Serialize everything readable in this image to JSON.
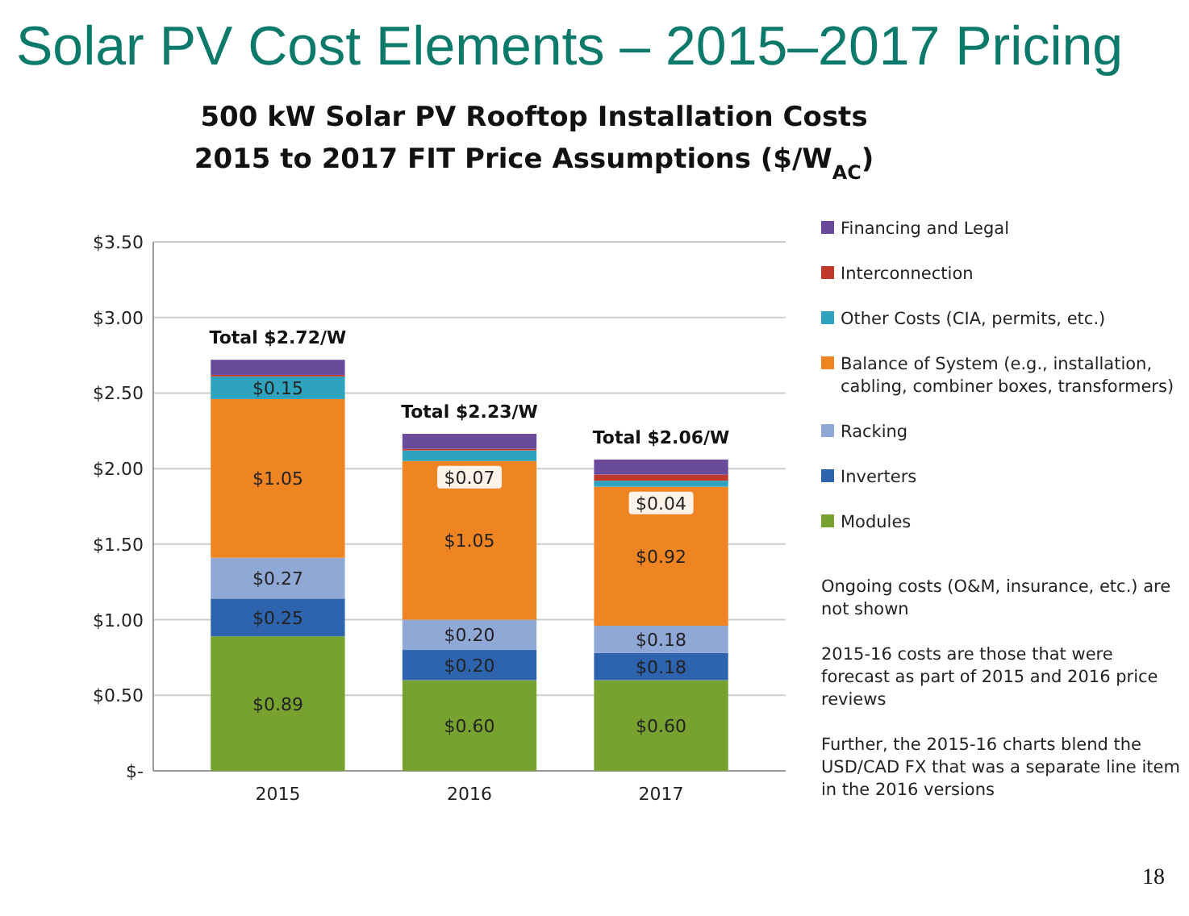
{
  "chart_data": {
    "type": "bar",
    "stacked": true,
    "title": "Solar PV Cost Elements – 2015–2017 Pricing",
    "subtitle": "500 kW Solar PV Rooftop Installation Costs\n2015 to 2017 FIT Price Assumptions ($/W$_{AC}$)",
    "categories": [
      "2015",
      "2016",
      "2017"
    ],
    "series": [
      {
        "name": "Modules",
        "color": "#78a22f",
        "values": [
          0.89,
          0.6,
          0.6
        ],
        "value_labels": [
          "$0.89",
          "$0.60",
          "$0.60"
        ]
      },
      {
        "name": "Inverters",
        "color": "#2e63ad",
        "values": [
          0.25,
          0.2,
          0.18
        ],
        "value_labels": [
          "$0.25",
          "$0.20",
          "$0.18"
        ]
      },
      {
        "name": "Racking",
        "color": "#8fa8d6",
        "values": [
          0.27,
          0.2,
          0.18
        ],
        "value_labels": [
          "$0.27",
          "$0.20",
          "$0.18"
        ]
      },
      {
        "name": "Balance of System (e.g., installation, cabling, combiner boxes, transformers)",
        "color": "#ee8422",
        "values": [
          1.05,
          1.05,
          0.92
        ],
        "value_labels": [
          "$1.05",
          "$1.05",
          "$0.92"
        ]
      },
      {
        "name": "Other Costs (CIA, permits, etc.)",
        "color": "#2fa3bd",
        "values": [
          0.15,
          0.07,
          0.04
        ],
        "value_labels": [
          "$0.15",
          "$0.07",
          "$0.04"
        ]
      },
      {
        "name": "Interconnection",
        "color": "#c0392b",
        "values": [
          0.01,
          0.01,
          0.04
        ],
        "value_labels": [
          null,
          null,
          null
        ]
      },
      {
        "name": "Financing and Legal",
        "color": "#6a4a9a",
        "values": [
          0.1,
          0.1,
          0.1
        ],
        "value_labels": [
          null,
          null,
          null
        ]
      }
    ],
    "totals": [
      "Total  $2.72/W",
      "Total  $2.23/W",
      "Total  $2.06/W"
    ],
    "ylim": [
      0,
      3.5
    ],
    "yticks": [
      {
        "value": 0,
        "label": "$-"
      },
      {
        "value": 0.5,
        "label": "$0.50"
      },
      {
        "value": 1,
        "label": "$1.00"
      },
      {
        "value": 1.5,
        "label": "$1.50"
      },
      {
        "value": 2,
        "label": "$2.00"
      },
      {
        "value": 2.5,
        "label": "$2.50"
      },
      {
        "value": 3,
        "label": "$3.00"
      },
      {
        "value": 3.5,
        "label": "$3.50"
      }
    ],
    "grid": "y",
    "legend": "right",
    "annotations": [
      "Ongoing costs (O&M, insurance, etc.) are not shown",
      "2015-16 costs are those that were forecast as part of 2015 and 2016 price reviews",
      "Further, the 2015-16 charts blend the USD/CAD FX that was a separate line item in the 2016 versions",
      "18"
    ]
  }
}
